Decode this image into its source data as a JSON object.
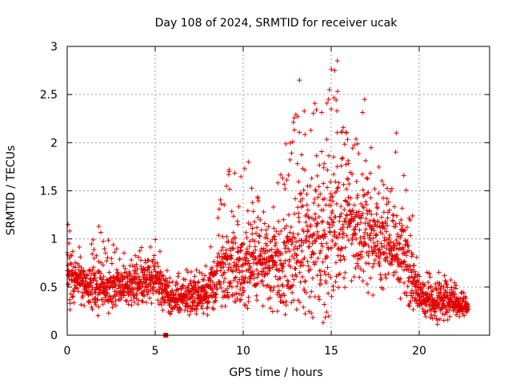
{
  "chart_data": {
    "type": "scatter",
    "title": "Day 108 of 2024, SRMTID for receiver ucak",
    "xlabel": "GPS time / hours",
    "ylabel": "SRMTID / TECUs",
    "xlim": [
      0,
      24
    ],
    "ylim": [
      0,
      3
    ],
    "x_ticks": [
      0,
      5,
      10,
      15,
      20
    ],
    "x_tick_labels": [
      "0",
      "5",
      "10",
      "15",
      "20"
    ],
    "y_ticks": [
      0,
      0.5,
      1,
      1.5,
      2,
      2.5,
      3
    ],
    "y_tick_labels": [
      "0",
      "0.5",
      "1",
      "1.5",
      "2",
      "2.5",
      "3"
    ],
    "grid": true,
    "marker": "+",
    "marker_color": "#e00000",
    "series": [
      {
        "name": "SRMTID",
        "x_range": [
          0,
          22.8
        ],
        "gap_note": "isolated point near x=5.6",
        "envelope": [
          {
            "x": 0.0,
            "lo": 0.2,
            "mid": 0.6,
            "hi": 1.15
          },
          {
            "x": 1.0,
            "lo": 0.3,
            "mid": 0.55,
            "hi": 0.9
          },
          {
            "x": 2.0,
            "lo": 0.2,
            "mid": 0.45,
            "hi": 1.1
          },
          {
            "x": 3.0,
            "lo": 0.25,
            "mid": 0.5,
            "hi": 0.85
          },
          {
            "x": 4.0,
            "lo": 0.3,
            "mid": 0.55,
            "hi": 0.9
          },
          {
            "x": 5.0,
            "lo": 0.3,
            "mid": 0.6,
            "hi": 1.0
          },
          {
            "x": 6.0,
            "lo": 0.2,
            "mid": 0.35,
            "hi": 0.6
          },
          {
            "x": 7.0,
            "lo": 0.15,
            "mid": 0.4,
            "hi": 0.75
          },
          {
            "x": 8.0,
            "lo": 0.2,
            "mid": 0.45,
            "hi": 0.8
          },
          {
            "x": 9.0,
            "lo": 0.3,
            "mid": 0.75,
            "hi": 1.7
          },
          {
            "x": 10.0,
            "lo": 0.3,
            "mid": 0.7,
            "hi": 1.8
          },
          {
            "x": 11.0,
            "lo": 0.3,
            "mid": 0.8,
            "hi": 1.45
          },
          {
            "x": 12.0,
            "lo": 0.2,
            "mid": 0.75,
            "hi": 1.6
          },
          {
            "x": 13.0,
            "lo": 0.3,
            "mid": 0.85,
            "hi": 2.65
          },
          {
            "x": 14.0,
            "lo": 0.2,
            "mid": 0.95,
            "hi": 2.4
          },
          {
            "x": 15.0,
            "lo": 0.1,
            "mid": 1.1,
            "hi": 2.85
          },
          {
            "x": 16.0,
            "lo": 0.5,
            "mid": 1.2,
            "hi": 2.0
          },
          {
            "x": 17.0,
            "lo": 0.5,
            "mid": 1.05,
            "hi": 2.45
          },
          {
            "x": 18.0,
            "lo": 0.4,
            "mid": 0.95,
            "hi": 1.6
          },
          {
            "x": 19.0,
            "lo": 0.3,
            "mid": 0.9,
            "hi": 2.1
          },
          {
            "x": 20.0,
            "lo": 0.2,
            "mid": 0.4,
            "hi": 0.75
          },
          {
            "x": 21.0,
            "lo": 0.1,
            "mid": 0.35,
            "hi": 0.7
          },
          {
            "x": 22.0,
            "lo": 0.15,
            "mid": 0.35,
            "hi": 0.6
          },
          {
            "x": 22.8,
            "lo": 0.2,
            "mid": 0.3,
            "hi": 0.45
          }
        ],
        "peaks": [
          {
            "x": 15.35,
            "y": 2.85
          },
          {
            "x": 15.2,
            "y": 2.75
          },
          {
            "x": 13.2,
            "y": 2.65
          },
          {
            "x": 14.9,
            "y": 2.55
          },
          {
            "x": 14.85,
            "y": 2.45
          },
          {
            "x": 16.9,
            "y": 2.45
          },
          {
            "x": 15.0,
            "y": 2.35
          },
          {
            "x": 18.7,
            "y": 2.1
          },
          {
            "x": 10.3,
            "y": 1.8
          },
          {
            "x": 9.2,
            "y": 1.7
          },
          {
            "x": 0.05,
            "y": 1.15
          },
          {
            "x": 1.8,
            "y": 1.13
          }
        ],
        "isolated_point": {
          "x": 5.6,
          "y": 0.0
        }
      }
    ]
  }
}
